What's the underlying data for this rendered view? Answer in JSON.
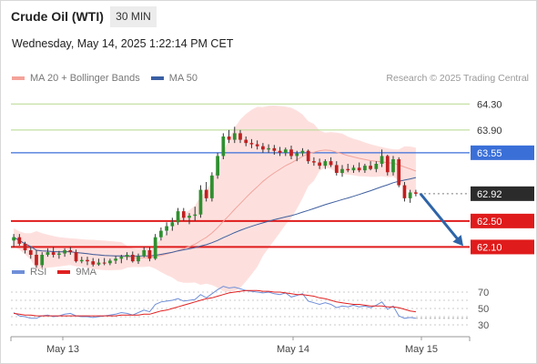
{
  "header": {
    "title": "Crude Oil (WTI)",
    "timeframe": "30 MIN",
    "datetime": "Wednesday, May 14, 2025 1:22:14 PM CET"
  },
  "legend": {
    "items": [
      {
        "label": "MA 20 + Bollinger Bands",
        "color": "#f4a39a"
      },
      {
        "label": "MA 50",
        "color": "#3a5fa3"
      }
    ],
    "credit": "Research © 2025 Trading Central"
  },
  "rsi_legend": {
    "items": [
      {
        "label": "RSI",
        "color": "#6f8fd8"
      },
      {
        "label": "9MA",
        "color": "#e02020"
      }
    ]
  },
  "colors": {
    "up_candle": "#2f8f2f",
    "down_candle": "#c02020",
    "bollinger_fill": "#fde0de",
    "ma20": "#f2a49c",
    "ma50": "#3f5f9f",
    "resistance": "#b5d98e",
    "pivot": "#3a6fd8",
    "support": "#e01b1b",
    "current": "#2b2b2b",
    "arrow": "#2e64a8"
  },
  "chart_data": [
    {
      "type": "candlestick",
      "title": "Crude Oil (WTI)",
      "timeframe": "30 MIN",
      "x_labels": [
        "May 13",
        "May 14",
        "May 15"
      ],
      "ylim": [
        61.7,
        64.5
      ],
      "levels": [
        {
          "label": "64.30",
          "value": 64.3,
          "kind": "resistance"
        },
        {
          "label": "63.90",
          "value": 63.9,
          "kind": "resistance"
        },
        {
          "label": "63.55",
          "value": 63.55,
          "kind": "pivot"
        },
        {
          "label": "62.92",
          "value": 62.92,
          "kind": "current"
        },
        {
          "label": "62.50",
          "value": 62.5,
          "kind": "support"
        },
        {
          "label": "62.10",
          "value": 62.1,
          "kind": "support"
        }
      ],
      "ohlc": [
        [
          62.2,
          62.3,
          62.1,
          62.25
        ],
        [
          62.25,
          62.3,
          62.12,
          62.15
        ],
        [
          62.15,
          62.18,
          62.0,
          62.05
        ],
        [
          62.05,
          62.1,
          61.92,
          61.98
        ],
        [
          61.98,
          62.05,
          61.78,
          61.82
        ],
        [
          61.82,
          62.02,
          61.78,
          61.98
        ],
        [
          61.98,
          62.08,
          61.95,
          62.02
        ],
        [
          62.02,
          62.1,
          61.94,
          61.98
        ],
        [
          61.98,
          62.04,
          61.92,
          62.0
        ],
        [
          62.0,
          62.08,
          61.95,
          62.05
        ],
        [
          62.05,
          62.1,
          61.98,
          62.02
        ],
        [
          62.02,
          62.06,
          61.86,
          61.88
        ],
        [
          61.88,
          61.95,
          61.85,
          61.9
        ],
        [
          61.9,
          61.95,
          61.82,
          61.88
        ],
        [
          61.88,
          61.93,
          61.8,
          61.83
        ],
        [
          61.83,
          61.92,
          61.81,
          61.86
        ],
        [
          61.86,
          61.93,
          61.82,
          61.85
        ],
        [
          61.85,
          61.92,
          61.82,
          61.89
        ],
        [
          61.89,
          61.96,
          61.84,
          61.92
        ],
        [
          61.92,
          61.98,
          61.85,
          61.95
        ],
        [
          61.95,
          62.02,
          61.9,
          61.98
        ],
        [
          61.98,
          62.03,
          61.86,
          61.88
        ],
        [
          61.88,
          62.0,
          61.84,
          61.96
        ],
        [
          61.96,
          62.1,
          61.94,
          62.05
        ],
        [
          62.05,
          62.1,
          61.88,
          61.92
        ],
        [
          61.92,
          62.3,
          61.9,
          62.25
        ],
        [
          62.25,
          62.4,
          62.2,
          62.35
        ],
        [
          62.35,
          62.48,
          62.28,
          62.42
        ],
        [
          62.42,
          62.55,
          62.35,
          62.48
        ],
        [
          62.48,
          62.7,
          62.44,
          62.65
        ],
        [
          62.65,
          62.7,
          62.5,
          62.55
        ],
        [
          62.55,
          62.62,
          62.45,
          62.58
        ],
        [
          62.58,
          62.72,
          62.5,
          62.6
        ],
        [
          62.6,
          63.05,
          62.55,
          62.98
        ],
        [
          62.98,
          63.1,
          62.8,
          62.85
        ],
        [
          62.85,
          63.25,
          62.8,
          63.2
        ],
        [
          63.2,
          63.55,
          63.15,
          63.5
        ],
        [
          63.5,
          63.85,
          63.45,
          63.8
        ],
        [
          63.8,
          63.9,
          63.7,
          63.75
        ],
        [
          63.75,
          63.95,
          63.7,
          63.85
        ],
        [
          63.85,
          63.9,
          63.7,
          63.75
        ],
        [
          63.75,
          63.8,
          63.65,
          63.7
        ],
        [
          63.7,
          63.76,
          63.62,
          63.68
        ],
        [
          63.68,
          63.74,
          63.6,
          63.65
        ],
        [
          63.65,
          63.7,
          63.55,
          63.6
        ],
        [
          63.6,
          63.68,
          63.55,
          63.62
        ],
        [
          63.62,
          63.67,
          63.52,
          63.58
        ],
        [
          63.58,
          63.64,
          63.5,
          63.55
        ],
        [
          63.55,
          63.63,
          63.5,
          63.6
        ],
        [
          63.6,
          63.66,
          63.45,
          63.5
        ],
        [
          63.5,
          63.58,
          63.42,
          63.54
        ],
        [
          63.54,
          63.62,
          63.5,
          63.58
        ],
        [
          63.58,
          63.6,
          63.38,
          63.42
        ],
        [
          63.42,
          63.48,
          63.35,
          63.4
        ],
        [
          63.4,
          63.46,
          63.3,
          63.35
        ],
        [
          63.35,
          63.45,
          63.3,
          63.42
        ],
        [
          63.42,
          63.48,
          63.33,
          63.36
        ],
        [
          63.36,
          63.42,
          63.2,
          63.24
        ],
        [
          63.24,
          63.36,
          63.18,
          63.3
        ],
        [
          63.3,
          63.38,
          63.25,
          63.28
        ],
        [
          63.28,
          63.36,
          63.24,
          63.32
        ],
        [
          63.32,
          63.4,
          63.25,
          63.28
        ],
        [
          63.28,
          63.38,
          63.24,
          63.35
        ],
        [
          63.35,
          63.42,
          63.28,
          63.3
        ],
        [
          63.3,
          63.42,
          63.25,
          63.38
        ],
        [
          63.38,
          63.6,
          63.33,
          63.5
        ],
        [
          63.5,
          63.52,
          63.2,
          63.25
        ],
        [
          63.25,
          63.5,
          63.2,
          63.45
        ],
        [
          63.45,
          63.48,
          63.02,
          63.05
        ],
        [
          63.05,
          63.1,
          62.8,
          62.85
        ],
        [
          62.85,
          62.98,
          62.78,
          62.94
        ],
        [
          62.94,
          62.98,
          62.88,
          62.92
        ]
      ]
    },
    {
      "type": "line",
      "title": "RSI",
      "series": [
        {
          "name": "RSI",
          "values": [
            45,
            41,
            40,
            38,
            38,
            41,
            42,
            40,
            41,
            43,
            44,
            41,
            40,
            40,
            39,
            40,
            41,
            42,
            43,
            45,
            44,
            42,
            45,
            48,
            46,
            55,
            58,
            59,
            60,
            62,
            59,
            60,
            61,
            67,
            63,
            68,
            73,
            77,
            75,
            76,
            74,
            72,
            71,
            70,
            69,
            70,
            68,
            67,
            69,
            64,
            66,
            68,
            59,
            57,
            55,
            57,
            55,
            51,
            53,
            52,
            54,
            52,
            53,
            51,
            54,
            58,
            49,
            53,
            41,
            38,
            39,
            38
          ]
        },
        {
          "name": "9MA",
          "values": [
            44,
            43,
            42,
            42,
            41,
            41,
            41,
            41,
            41,
            41,
            41,
            41,
            41,
            41,
            41,
            41,
            41,
            41,
            41,
            42,
            42,
            42,
            42,
            43,
            43,
            45,
            47,
            48,
            50,
            52,
            54,
            56,
            58,
            60,
            62,
            63,
            65,
            67,
            69,
            70,
            71,
            72,
            72,
            72,
            71,
            71,
            70,
            70,
            69,
            68,
            67,
            67,
            66,
            65,
            63,
            62,
            60,
            58,
            57,
            56,
            55,
            55,
            54,
            53,
            53,
            53,
            52,
            52,
            51,
            49,
            47,
            46
          ]
        }
      ],
      "yticks": [
        30,
        50,
        70
      ],
      "ylim": [
        20,
        80
      ]
    }
  ]
}
